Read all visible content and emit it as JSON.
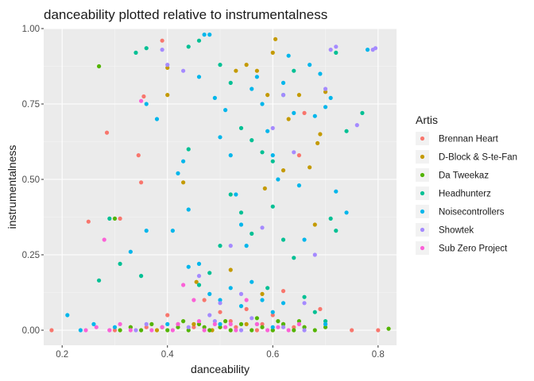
{
  "chart_data": {
    "type": "scatter",
    "title": "danceability plotted relative to instrumentalness",
    "xlabel": "danceability",
    "ylabel": "instrumentalness",
    "xlim": [
      0.165,
      0.835
    ],
    "ylim": [
      -0.05,
      1.0
    ],
    "x_ticks": [
      0.2,
      0.4,
      0.6,
      0.8
    ],
    "x_tick_labels": [
      "0.2",
      "0.4",
      "0.6",
      "0.8"
    ],
    "y_ticks": [
      0.0,
      0.25,
      0.5,
      0.75,
      1.0
    ],
    "y_tick_labels": [
      "0.00",
      "0.25",
      "0.50",
      "0.75",
      "1.00"
    ],
    "grid": true,
    "legend_title": "Artis",
    "legend_position": "right",
    "series": [
      {
        "name": "Brennan Heart",
        "color": "#F8766D",
        "points": [
          [
            0.18,
            0.0
          ],
          [
            0.25,
            0.36
          ],
          [
            0.285,
            0.655
          ],
          [
            0.31,
            0.37
          ],
          [
            0.345,
            0.58
          ],
          [
            0.35,
            0.49
          ],
          [
            0.355,
            0.775
          ],
          [
            0.39,
            0.96
          ],
          [
            0.4,
            0.05
          ],
          [
            0.42,
            0.02
          ],
          [
            0.45,
            0.01
          ],
          [
            0.47,
            0.1
          ],
          [
            0.5,
            0.06
          ],
          [
            0.52,
            0.03
          ],
          [
            0.55,
            0.07
          ],
          [
            0.58,
            0.02
          ],
          [
            0.6,
            0.05
          ],
          [
            0.62,
            0.13
          ],
          [
            0.65,
            0.58
          ],
          [
            0.66,
            0.72
          ],
          [
            0.69,
            0.07
          ],
          [
            0.7,
            0.02
          ],
          [
            0.75,
            0.0
          ],
          [
            0.8,
            0.0
          ],
          [
            0.48,
            0.0
          ],
          [
            0.53,
            0.01
          ],
          [
            0.57,
            0.0
          ],
          [
            0.3,
            0.0
          ],
          [
            0.36,
            0.01
          ],
          [
            0.64,
            0.01
          ]
        ]
      },
      {
        "name": "D-Block & S-te-Fan",
        "color": "#C49A00",
        "points": [
          [
            0.4,
            0.78
          ],
          [
            0.4,
            0.87
          ],
          [
            0.43,
            0.49
          ],
          [
            0.455,
            0.16
          ],
          [
            0.485,
            0.0
          ],
          [
            0.53,
            0.86
          ],
          [
            0.55,
            0.88
          ],
          [
            0.57,
            0.86
          ],
          [
            0.585,
            0.47
          ],
          [
            0.59,
            0.78
          ],
          [
            0.6,
            0.92
          ],
          [
            0.605,
            0.965
          ],
          [
            0.62,
            0.53
          ],
          [
            0.63,
            0.7
          ],
          [
            0.65,
            0.78
          ],
          [
            0.67,
            0.54
          ],
          [
            0.68,
            0.35
          ],
          [
            0.685,
            0.62
          ],
          [
            0.69,
            0.65
          ],
          [
            0.7,
            0.79
          ],
          [
            0.45,
            0.02
          ],
          [
            0.5,
            0.01
          ],
          [
            0.55,
            0.02
          ],
          [
            0.6,
            0.0
          ],
          [
            0.62,
            0.02
          ],
          [
            0.66,
            0.01
          ],
          [
            0.38,
            0.0
          ],
          [
            0.33,
            0.01
          ],
          [
            0.58,
            0.12
          ],
          [
            0.52,
            0.2
          ]
        ]
      },
      {
        "name": "Da Tweekaz",
        "color": "#53B400",
        "points": [
          [
            0.27,
            0.875
          ],
          [
            0.3,
            0.37
          ],
          [
            0.31,
            0.0
          ],
          [
            0.33,
            0.01
          ],
          [
            0.35,
            0.0
          ],
          [
            0.37,
            0.02
          ],
          [
            0.4,
            0.0
          ],
          [
            0.42,
            0.01
          ],
          [
            0.44,
            0.0
          ],
          [
            0.46,
            0.02
          ],
          [
            0.48,
            0.0
          ],
          [
            0.5,
            0.01
          ],
          [
            0.52,
            0.0
          ],
          [
            0.54,
            0.02
          ],
          [
            0.56,
            0.0
          ],
          [
            0.58,
            0.01
          ],
          [
            0.6,
            0.0
          ],
          [
            0.62,
            0.02
          ],
          [
            0.64,
            0.0
          ],
          [
            0.66,
            0.01
          ],
          [
            0.68,
            0.0
          ],
          [
            0.7,
            0.01
          ],
          [
            0.82,
            0.005
          ],
          [
            0.57,
            0.04
          ],
          [
            0.61,
            0.03
          ],
          [
            0.43,
            0.03
          ],
          [
            0.39,
            0.01
          ],
          [
            0.51,
            0.03
          ],
          [
            0.65,
            0.03
          ],
          [
            0.47,
            0.01
          ]
        ]
      },
      {
        "name": "Headhunterz",
        "color": "#00C094",
        "points": [
          [
            0.29,
            0.37
          ],
          [
            0.31,
            0.22
          ],
          [
            0.34,
            0.92
          ],
          [
            0.36,
            0.935
          ],
          [
            0.44,
            0.94
          ],
          [
            0.46,
            0.96
          ],
          [
            0.5,
            0.88
          ],
          [
            0.52,
            0.82
          ],
          [
            0.54,
            0.67
          ],
          [
            0.56,
            0.63
          ],
          [
            0.58,
            0.59
          ],
          [
            0.6,
            0.41
          ],
          [
            0.62,
            0.3
          ],
          [
            0.64,
            0.24
          ],
          [
            0.66,
            0.11
          ],
          [
            0.68,
            0.06
          ],
          [
            0.7,
            0.03
          ],
          [
            0.72,
            0.92
          ],
          [
            0.74,
            0.66
          ],
          [
            0.77,
            0.72
          ],
          [
            0.48,
            0.19
          ],
          [
            0.5,
            0.28
          ],
          [
            0.52,
            0.45
          ],
          [
            0.54,
            0.39
          ],
          [
            0.56,
            0.32
          ],
          [
            0.46,
            0.15
          ],
          [
            0.44,
            0.6
          ],
          [
            0.6,
            0.56
          ],
          [
            0.62,
            0.78
          ],
          [
            0.64,
            0.86
          ],
          [
            0.27,
            0.165
          ],
          [
            0.71,
            0.37
          ],
          [
            0.72,
            0.33
          ],
          [
            0.35,
            0.18
          ],
          [
            0.59,
            0.14
          ]
        ]
      },
      {
        "name": "Noisecontrollers",
        "color": "#00B6EB",
        "points": [
          [
            0.21,
            0.05
          ],
          [
            0.235,
            0.0
          ],
          [
            0.26,
            0.02
          ],
          [
            0.33,
            0.26
          ],
          [
            0.36,
            0.33
          ],
          [
            0.36,
            0.75
          ],
          [
            0.38,
            0.7
          ],
          [
            0.41,
            0.33
          ],
          [
            0.42,
            0.52
          ],
          [
            0.43,
            0.56
          ],
          [
            0.44,
            0.21
          ],
          [
            0.46,
            0.84
          ],
          [
            0.47,
            0.98
          ],
          [
            0.48,
            0.98
          ],
          [
            0.49,
            0.77
          ],
          [
            0.5,
            0.64
          ],
          [
            0.51,
            0.73
          ],
          [
            0.52,
            0.58
          ],
          [
            0.53,
            0.45
          ],
          [
            0.54,
            0.35
          ],
          [
            0.55,
            0.28
          ],
          [
            0.56,
            0.8
          ],
          [
            0.57,
            0.84
          ],
          [
            0.58,
            0.75
          ],
          [
            0.59,
            0.66
          ],
          [
            0.6,
            0.58
          ],
          [
            0.61,
            0.5
          ],
          [
            0.62,
            0.82
          ],
          [
            0.63,
            0.91
          ],
          [
            0.64,
            0.72
          ],
          [
            0.65,
            0.48
          ],
          [
            0.66,
            0.3
          ],
          [
            0.67,
            0.88
          ],
          [
            0.68,
            0.71
          ],
          [
            0.69,
            0.85
          ],
          [
            0.7,
            0.74
          ],
          [
            0.71,
            0.77
          ],
          [
            0.72,
            0.46
          ],
          [
            0.74,
            0.39
          ],
          [
            0.78,
            0.93
          ],
          [
            0.5,
            0.1
          ],
          [
            0.52,
            0.14
          ],
          [
            0.54,
            0.08
          ],
          [
            0.56,
            0.16
          ],
          [
            0.58,
            0.1
          ],
          [
            0.6,
            0.06
          ],
          [
            0.62,
            0.09
          ],
          [
            0.48,
            0.12
          ],
          [
            0.46,
            0.22
          ],
          [
            0.44,
            0.4
          ],
          [
            0.3,
            0.01
          ],
          [
            0.4,
            0.02
          ],
          [
            0.5,
            0.02
          ],
          [
            0.6,
            0.01
          ],
          [
            0.7,
            0.02
          ]
        ]
      },
      {
        "name": "Showtek",
        "color": "#A58AFF",
        "points": [
          [
            0.29,
            0.0
          ],
          [
            0.34,
            0.0
          ],
          [
            0.36,
            0.02
          ],
          [
            0.39,
            0.93
          ],
          [
            0.4,
            0.88
          ],
          [
            0.43,
            0.86
          ],
          [
            0.46,
            0.18
          ],
          [
            0.48,
            0.05
          ],
          [
            0.5,
            0.09
          ],
          [
            0.52,
            0.28
          ],
          [
            0.54,
            0.12
          ],
          [
            0.56,
            0.04
          ],
          [
            0.58,
            0.34
          ],
          [
            0.6,
            0.67
          ],
          [
            0.62,
            0.78
          ],
          [
            0.64,
            0.59
          ],
          [
            0.66,
            0.09
          ],
          [
            0.68,
            0.25
          ],
          [
            0.7,
            0.8
          ],
          [
            0.71,
            0.93
          ],
          [
            0.72,
            0.94
          ],
          [
            0.76,
            0.68
          ],
          [
            0.79,
            0.93
          ],
          [
            0.795,
            0.935
          ],
          [
            0.44,
            0.01
          ],
          [
            0.54,
            0.0
          ],
          [
            0.62,
            0.01
          ],
          [
            0.57,
            0.02
          ],
          [
            0.49,
            0.03
          ],
          [
            0.66,
            0.0
          ]
        ]
      },
      {
        "name": "Sub Zero Project",
        "color": "#FB61D7",
        "points": [
          [
            0.245,
            0.0
          ],
          [
            0.265,
            0.01
          ],
          [
            0.28,
            0.3
          ],
          [
            0.29,
            0.0
          ],
          [
            0.31,
            0.02
          ],
          [
            0.33,
            0.0
          ],
          [
            0.35,
            0.76
          ],
          [
            0.37,
            0.0
          ],
          [
            0.39,
            0.01
          ],
          [
            0.41,
            0.0
          ],
          [
            0.43,
            0.15
          ],
          [
            0.45,
            0.1
          ],
          [
            0.47,
            0.0
          ],
          [
            0.49,
            0.02
          ],
          [
            0.51,
            0.01
          ],
          [
            0.53,
            0.0
          ],
          [
            0.55,
            0.1
          ],
          [
            0.57,
            0.02
          ],
          [
            0.59,
            0.0
          ],
          [
            0.61,
            0.01
          ],
          [
            0.63,
            0.0
          ],
          [
            0.65,
            0.02
          ],
          [
            0.42,
            0.02
          ],
          [
            0.46,
            0.03
          ],
          [
            0.52,
            0.02
          ]
        ]
      }
    ]
  }
}
